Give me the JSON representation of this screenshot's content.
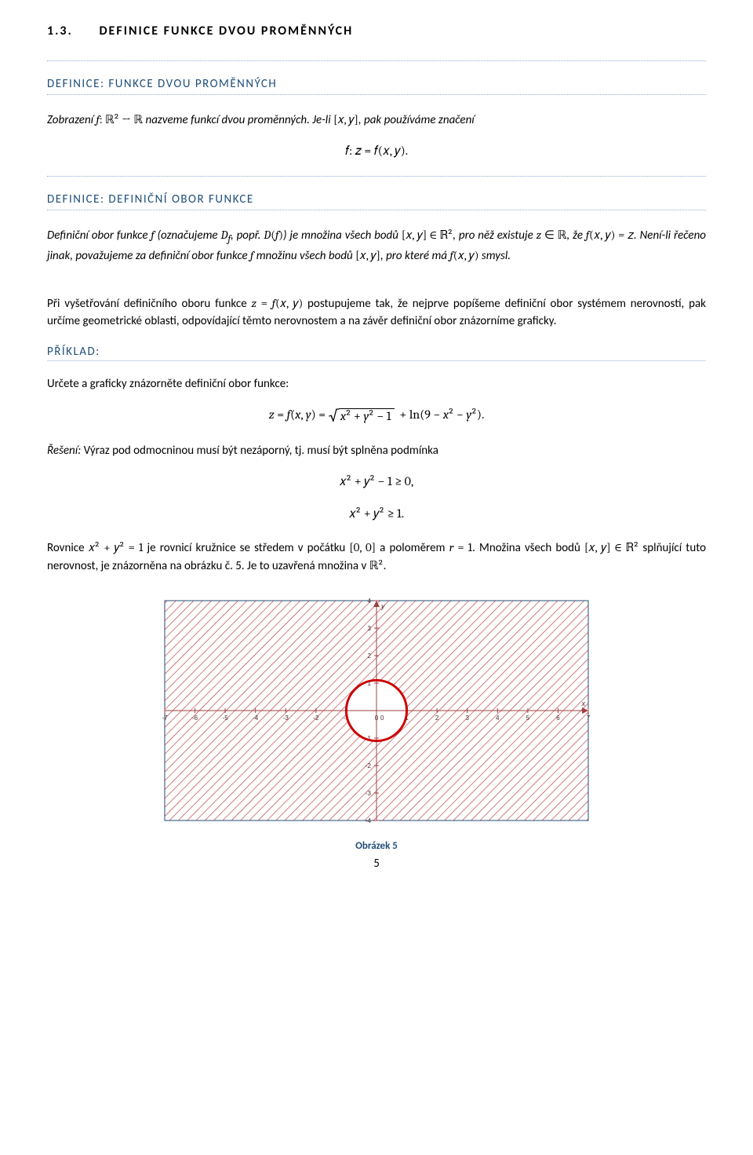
{
  "section": {
    "number": "1.3.",
    "title": "DEFINICE FUNKCE DVOU PROMĚNNÝCH"
  },
  "def1": {
    "heading": "DEFINICE: FUNKCE DVOU PROMĚNNÝCH",
    "text_a": "Zobrazení ",
    "text_b": " nazveme funkcí dvou proměnných. Je-li ",
    "text_c": ", pak používáme značení",
    "eq": "𝑓:  𝑧 = 𝑓(𝑥, 𝑦)."
  },
  "def2": {
    "heading": "DEFINICE: DEFINIČNÍ OBOR FUNKCE",
    "p_a": "Definiční obor funkce ",
    "p_b": " (označujeme ",
    "p_c": ", popř. ",
    "p_d": ") je množina všech bodů ",
    "p_e": ", pro něž existuje ",
    "p_f": ", že ",
    "p_g": ". Není-li řečeno jinak, považujeme za definiční obor funkce ",
    "p_h": " množinu všech bodů ",
    "p_i": ", pro které má ",
    "p_j": " smysl."
  },
  "para1": {
    "a": "Při vyšetřování definičního oboru funkce ",
    "b": " postupujeme tak, že nejprve popíšeme definiční obor systémem nerovností, pak určíme geometrické oblasti, odpovídající těmto nerovnostem a na závěr definiční obor znázorníme graficky."
  },
  "example": {
    "heading": "PŘÍKLAD:",
    "task": "Určete a graficky znázorněte definiční obor funkce:",
    "sol_a": "Řešení: ",
    "sol_b": "Výraz pod odmocninou musí být nezáporný, tj. musí být splněna podmínka",
    "ineq1": "𝑥² + 𝑦² − 1 ≥ 0,",
    "ineq2": "𝑥² + 𝑦² ≥ 1.",
    "circ_a": "Rovnice ",
    "circ_b": " je rovnicí kružnice se středem v počátku ",
    "circ_c": " a poloměrem ",
    "circ_d": ". Množina všech bodů ",
    "circ_e": " splňující tuto nerovnost, je znázorněna na obrázku č. 5. Je to uzavřená množina v ",
    "circ_f": "."
  },
  "figure": {
    "caption": "Obrázek 5",
    "xrange": [
      -7,
      7
    ],
    "yrange": [
      -4,
      4
    ],
    "xticks": [
      -7,
      -6,
      -5,
      -4,
      -3,
      -2,
      -1,
      0,
      1,
      2,
      3,
      4,
      5,
      6,
      7
    ],
    "yticks": [
      -4,
      -3,
      -2,
      -1,
      0,
      1,
      2,
      3,
      4
    ],
    "circle_radius": 1,
    "circle_color": "#cc0000",
    "circle_stroke": 3,
    "hatch_color": "#b02a2a",
    "bg_color": "#ffffff",
    "axis_color": "#a04040",
    "tick_font_size": 8
  },
  "page_number": "5"
}
